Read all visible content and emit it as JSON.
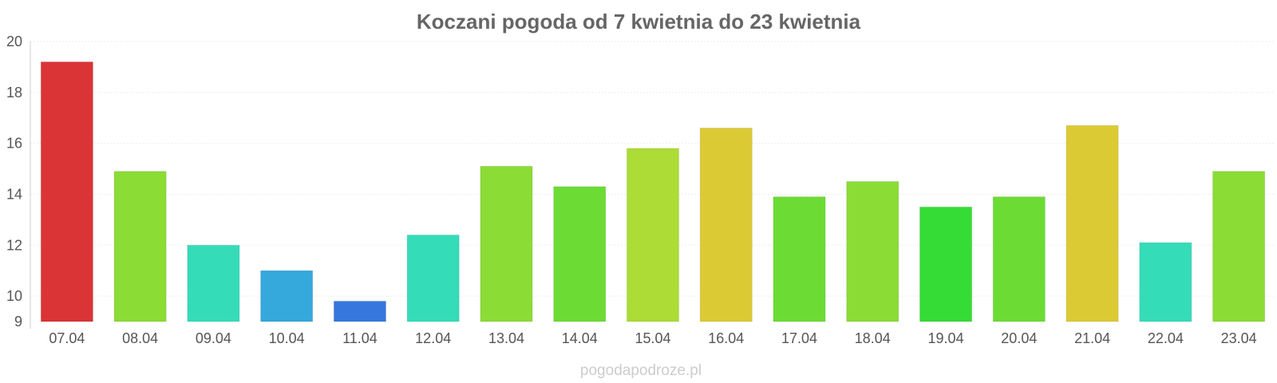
{
  "watermark": "pogodapodroze.pl",
  "chart_data": {
    "type": "bar",
    "title": "Koczani pogoda od 7 kwietnia do 23 kwietnia",
    "xlabel": "",
    "ylabel": "",
    "ylim": [
      9,
      20
    ],
    "yticks": [
      9,
      10,
      12,
      14,
      16,
      18,
      20
    ],
    "grid": true,
    "categories": [
      "07.04",
      "08.04",
      "09.04",
      "10.04",
      "11.04",
      "12.04",
      "13.04",
      "14.04",
      "15.04",
      "16.04",
      "17.04",
      "18.04",
      "19.04",
      "20.04",
      "21.04",
      "22.04",
      "23.04"
    ],
    "values": [
      19.2,
      14.9,
      12.0,
      11.0,
      9.8,
      12.4,
      15.1,
      14.3,
      15.8,
      16.6,
      13.9,
      14.5,
      13.5,
      13.9,
      16.7,
      12.1,
      14.9
    ],
    "colors": [
      "#db3436",
      "#8bdc35",
      "#35dcb8",
      "#35a8dc",
      "#3577dc",
      "#35dcb8",
      "#8bdc35",
      "#6cdc35",
      "#acdc35",
      "#dcca35",
      "#6cdc35",
      "#8bdc35",
      "#35dc35",
      "#6cdc35",
      "#dcca35",
      "#35dcb8",
      "#8bdc35"
    ]
  }
}
